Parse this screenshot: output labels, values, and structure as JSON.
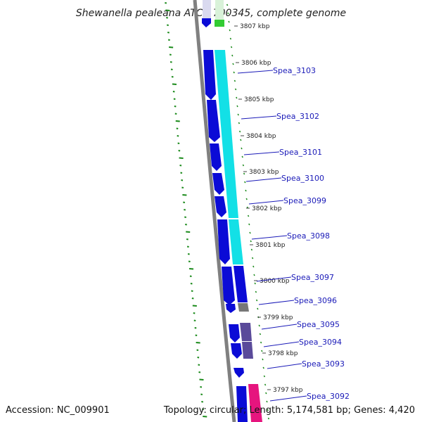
{
  "title": "Shewanella pealeana ATCC 700345, complete genome",
  "footer": {
    "accession": "Accession: NC_009901",
    "summary": "Topology: circular; Length: 5,174,581 bp; Genes: 4,420"
  },
  "colors": {
    "cds_forward": "#0b0bd6",
    "cds_reverse": "#13e0e6",
    "trna": "#33cc33",
    "rrna_like": "#e6157e",
    "other_feature": "#5a4a9a",
    "gray_feature": "#777777",
    "backbone": "#808080",
    "dotted_track": "#1a8a1a",
    "label_line": "#1a1ab8"
  },
  "ticks": [
    "3807 kbp",
    "3806 kbp",
    "3805 kbp",
    "3804 kbp",
    "3803 kbp",
    "3802 kbp",
    "3801 kbp",
    "3800 kbp",
    "3799 kbp",
    "3798 kbp",
    "3797 kbp"
  ],
  "genes": [
    "Spea_3103",
    "Spea_3102",
    "Spea_3101",
    "Spea_3100",
    "Spea_3099",
    "Spea_3098",
    "Spea_3097",
    "Spea_3096",
    "Spea_3095",
    "Spea_3094",
    "Spea_3093",
    "Spea_3092"
  ]
}
